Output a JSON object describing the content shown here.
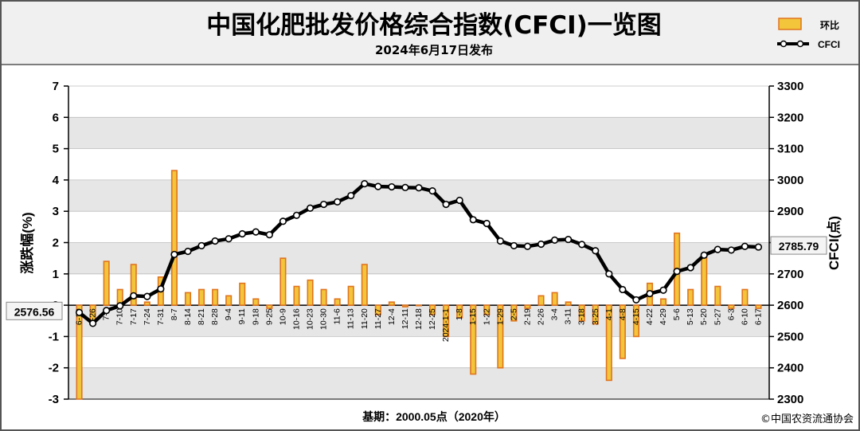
{
  "header": {
    "title": "中国化肥批发价格综合指数(CFCI)一览图",
    "subtitle": "2024年6月17日发布"
  },
  "footer": {
    "base_note": "基期：2000.05点（2020年）",
    "copyright": "©中国农资流通协会"
  },
  "colors": {
    "bar_fill": "#f2c53a",
    "bar_stroke": "#e0741f",
    "line": "#000000",
    "marker_fill": "#ffffff",
    "plot_band": "#e6e6e6",
    "header_bg": "#f0f0f0"
  },
  "chart_data": {
    "type": "bar+line",
    "xlabel": "",
    "ylabel_left": "涨跌幅(%)",
    "ylabel_right": "CFCI(点)",
    "ylim_left": [
      -3,
      7
    ],
    "ylim_right": [
      2300,
      3300
    ],
    "yticks_left": [
      -3,
      -2,
      -1,
      0,
      1,
      2,
      3,
      4,
      5,
      6,
      7
    ],
    "yticks_right": [
      2300,
      2400,
      2500,
      2600,
      2700,
      2800,
      2900,
      3000,
      3100,
      3200,
      3300
    ],
    "legend": {
      "position": "top-right",
      "entries": [
        "环比",
        "CFCI"
      ]
    },
    "categories": [
      "6-19",
      "6-26",
      "7-3",
      "7-10",
      "7-17",
      "7-24",
      "7-31",
      "8-7",
      "8-14",
      "8-21",
      "8-28",
      "9-4",
      "9-11",
      "9-18",
      "9-25",
      "10-9",
      "10-16",
      "10-23",
      "10-30",
      "11-6",
      "11-13",
      "11-20",
      "11-27",
      "12-4",
      "12-11",
      "12-18",
      "12-25",
      "2024-1-1",
      "1-8",
      "1-15",
      "1-22",
      "1-29",
      "2-5",
      "2-19",
      "2-26",
      "3-4",
      "3-11",
      "3-18",
      "3-25",
      "4-1",
      "4-8",
      "4-15",
      "4-22",
      "4-29",
      "5-6",
      "5-13",
      "5-20",
      "5-27",
      "6-3",
      "6-10",
      "6-17"
    ],
    "series": [
      {
        "name": "环比",
        "type": "bar",
        "values": [
          -3.0,
          -0.6,
          1.4,
          0.5,
          1.3,
          0.1,
          0.9,
          4.3,
          0.4,
          0.5,
          0.5,
          0.3,
          0.7,
          0.2,
          -0.1,
          1.5,
          0.6,
          0.8,
          0.5,
          0.2,
          0.6,
          1.3,
          -0.3,
          0.1,
          -0.05,
          0.0,
          -0.3,
          -1.0,
          -0.4,
          -2.2,
          -0.3,
          -2.0,
          -0.5,
          -0.1,
          0.3,
          0.4,
          0.1,
          -0.5,
          -0.6,
          -2.4,
          -1.7,
          -1.0,
          0.7,
          0.2,
          2.3,
          0.5,
          1.6,
          0.6,
          -0.1,
          0.5,
          -0.1
        ]
      },
      {
        "name": "CFCI",
        "type": "line",
        "values": [
          2576.56,
          2542,
          2583,
          2598,
          2630,
          2628,
          2652,
          2762,
          2772,
          2790,
          2805,
          2812,
          2828,
          2834,
          2825,
          2868,
          2887,
          2910,
          2922,
          2930,
          2950,
          2988,
          2979,
          2978,
          2976,
          2975,
          2965,
          2922,
          2935,
          2873,
          2861,
          2805,
          2790,
          2788,
          2795,
          2808,
          2810,
          2794,
          2774,
          2700,
          2650,
          2617,
          2637,
          2648,
          2708,
          2720,
          2760,
          2778,
          2776,
          2788,
          2785.79
        ]
      }
    ],
    "annotations": [
      "2576.56",
      "2785.79"
    ]
  }
}
